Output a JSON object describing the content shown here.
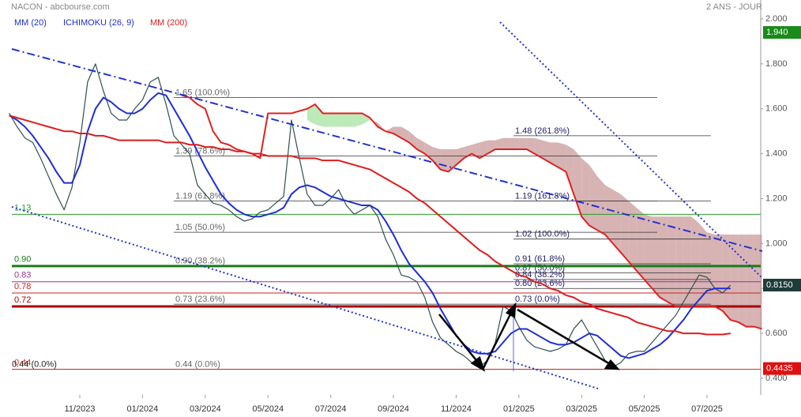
{
  "chart_data": {
    "type": "line",
    "title": "NACON - abcbourse.com",
    "subtitle": "2 ANS - JOUR",
    "categories": [
      null,
      null,
      null,
      null,
      null,
      null,
      null,
      null,
      null,
      "11/2023",
      null,
      null,
      null,
      null,
      null,
      null,
      null,
      "01/2024",
      null,
      null,
      null,
      null,
      null,
      null,
      null,
      "03/2024",
      null,
      null,
      null,
      null,
      null,
      null,
      null,
      "05/2024",
      null,
      null,
      null,
      null,
      null,
      null,
      null,
      "07/2024",
      null,
      null,
      null,
      null,
      null,
      null,
      null,
      "09/2024",
      null,
      null,
      null,
      null,
      null,
      null,
      null,
      "11/2024",
      null,
      null,
      null,
      null,
      null,
      null,
      null,
      "01/2025",
      null,
      null,
      null,
      null,
      null,
      null,
      null,
      "03/2025",
      null,
      null,
      null,
      null,
      null,
      null,
      null,
      "05/2025",
      null,
      null,
      null,
      null,
      null,
      null,
      null,
      "07/2025",
      null,
      null,
      null,
      null,
      null,
      null,
      null
    ],
    "price": {
      "color": "#2f4f4f",
      "values": [
        1.58,
        1.52,
        1.47,
        1.45,
        1.38,
        1.3,
        1.22,
        1.15,
        1.25,
        1.45,
        1.72,
        1.8,
        1.68,
        1.58,
        1.55,
        1.55,
        1.6,
        1.64,
        1.72,
        1.74,
        1.62,
        1.48,
        1.44,
        1.4,
        1.26,
        1.22,
        1.18,
        1.17,
        1.15,
        1.12,
        1.1,
        1.11,
        1.14,
        1.15,
        1.18,
        1.21,
        1.55,
        1.38,
        1.22,
        1.17,
        1.17,
        1.2,
        1.24,
        1.17,
        1.13,
        1.15,
        1.17,
        1.12,
        1.02,
        0.95,
        0.86,
        0.85,
        0.83,
        0.76,
        0.65,
        0.58,
        0.55,
        0.52,
        0.5,
        0.47,
        0.45,
        0.48,
        0.56,
        0.72,
        0.7,
        0.63,
        0.57,
        0.54,
        0.53,
        0.52,
        0.53,
        0.55,
        0.62,
        0.66,
        0.6,
        0.54,
        0.48,
        0.45,
        0.47,
        0.51,
        0.52,
        0.52,
        0.56,
        0.6,
        0.64,
        0.68,
        0.74,
        0.8,
        0.86,
        0.85,
        0.8,
        0.78,
        0.815,
        null,
        null,
        null,
        null
      ]
    },
    "series": [
      {
        "name": "MM (20)",
        "color": "#1f2fd0",
        "values": [
          1.57,
          1.55,
          1.52,
          1.48,
          1.43,
          1.38,
          1.32,
          1.27,
          1.27,
          1.35,
          1.5,
          1.6,
          1.65,
          1.63,
          1.6,
          1.58,
          1.58,
          1.6,
          1.64,
          1.67,
          1.66,
          1.6,
          1.54,
          1.48,
          1.41,
          1.34,
          1.28,
          1.22,
          1.18,
          1.15,
          1.13,
          1.12,
          1.12,
          1.13,
          1.14,
          1.16,
          1.22,
          1.25,
          1.26,
          1.25,
          1.23,
          1.21,
          1.2,
          1.19,
          1.18,
          1.17,
          1.17,
          1.15,
          1.1,
          1.04,
          0.97,
          0.91,
          0.87,
          0.83,
          0.78,
          0.71,
          0.65,
          0.59,
          0.55,
          0.52,
          0.51,
          0.51,
          0.52,
          0.56,
          0.6,
          0.62,
          0.62,
          0.6,
          0.58,
          0.56,
          0.55,
          0.55,
          0.56,
          0.58,
          0.6,
          0.59,
          0.56,
          0.53,
          0.5,
          0.49,
          0.5,
          0.51,
          0.53,
          0.55,
          0.58,
          0.62,
          0.66,
          0.71,
          0.75,
          0.79,
          0.8,
          0.8,
          0.8,
          null,
          null,
          null,
          null
        ]
      },
      {
        "name": "MM (200)",
        "color": "#dd1c1c",
        "values": [
          1.57,
          1.56,
          1.55,
          1.54,
          1.53,
          1.52,
          1.51,
          1.5,
          1.5,
          1.49,
          1.49,
          1.48,
          1.48,
          1.47,
          1.46,
          1.46,
          1.46,
          1.46,
          1.46,
          1.46,
          1.45,
          1.45,
          1.45,
          1.44,
          1.44,
          1.43,
          1.43,
          1.42,
          1.42,
          1.41,
          1.41,
          1.4,
          1.4,
          1.39,
          1.39,
          1.39,
          1.39,
          1.38,
          1.38,
          1.38,
          1.37,
          1.37,
          1.37,
          1.36,
          1.35,
          1.34,
          1.33,
          1.31,
          1.29,
          1.27,
          1.25,
          1.23,
          1.2,
          1.18,
          1.15,
          1.12,
          1.09,
          1.06,
          1.03,
          1.0,
          0.97,
          0.95,
          0.92,
          0.9,
          0.88,
          0.86,
          0.85,
          0.83,
          0.82,
          0.8,
          0.79,
          0.77,
          0.76,
          0.74,
          0.73,
          0.71,
          0.7,
          0.69,
          0.68,
          0.67,
          0.65,
          0.64,
          0.63,
          0.62,
          0.61,
          0.61,
          0.6,
          0.6,
          0.6,
          0.595,
          0.595,
          0.595,
          0.6,
          null,
          null,
          null,
          null
        ]
      }
    ],
    "ichimoku": {
      "name": "ICHIMOKU (26, 9)",
      "legend_color": "#1f2fd0",
      "line_color": "#e02020",
      "cloud_color": "#c99a9a",
      "cloud_color_2": "#a6e3a0",
      "span_b": [
        null,
        null,
        null,
        null,
        null,
        null,
        null,
        null,
        null,
        null,
        null,
        null,
        null,
        null,
        null,
        null,
        null,
        null,
        null,
        null,
        null,
        null,
        1.66,
        1.65,
        1.62,
        1.6,
        1.5,
        1.45,
        1.44,
        1.42,
        1.41,
        1.4,
        1.38,
        1.58,
        1.58,
        1.58,
        1.58,
        1.59,
        1.6,
        1.62,
        1.58,
        1.58,
        1.58,
        1.58,
        1.58,
        1.58,
        1.56,
        1.52,
        1.5,
        1.49,
        1.47,
        1.45,
        1.42,
        1.4,
        1.37,
        1.33,
        1.32,
        1.35,
        1.38,
        1.4,
        1.38,
        1.4,
        1.42,
        1.42,
        1.42,
        1.42,
        1.42,
        1.4,
        1.38,
        1.36,
        1.34,
        1.32,
        1.22,
        1.12,
        1.08,
        1.06,
        1.04,
        1.0,
        0.96,
        0.92,
        0.88,
        0.84,
        0.8,
        0.76,
        0.74,
        0.72,
        0.72,
        0.72,
        0.72,
        0.72,
        0.72,
        0.7,
        0.66,
        0.65,
        0.63,
        0.63,
        0.62
      ],
      "span_a": [
        null,
        null,
        null,
        null,
        null,
        null,
        null,
        null,
        null,
        null,
        null,
        null,
        null,
        null,
        null,
        null,
        null,
        null,
        null,
        null,
        null,
        null,
        null,
        null,
        null,
        null,
        null,
        null,
        null,
        null,
        null,
        null,
        null,
        null,
        null,
        null,
        null,
        null,
        1.55,
        1.53,
        1.52,
        1.52,
        1.52,
        1.52,
        1.52,
        1.53,
        1.55,
        1.54,
        1.5,
        1.52,
        1.52,
        1.5,
        1.47,
        1.45,
        1.43,
        1.42,
        1.42,
        1.42,
        1.43,
        1.44,
        1.45,
        1.46,
        1.46,
        1.47,
        1.47,
        1.47,
        1.47,
        1.47,
        1.46,
        1.45,
        1.45,
        1.44,
        1.42,
        1.38,
        1.35,
        1.3,
        1.26,
        1.24,
        1.22,
        1.19,
        1.16,
        1.13,
        1.12,
        1.12,
        1.12,
        1.12,
        1.12,
        1.12,
        1.09,
        1.05,
        1.04,
        1.04,
        1.04,
        1.04,
        1.04,
        1.04,
        1.04
      ]
    },
    "fib_left": [
      {
        "value": 1.65,
        "label": "1.65  (100.0%)"
      },
      {
        "value": 1.39,
        "label": "1.39  (78.6%)"
      },
      {
        "value": 1.19,
        "label": "1.19  (61.8%)"
      },
      {
        "value": 1.05,
        "label": "1.05  (50.0%)"
      },
      {
        "value": 0.9,
        "label": "0.90  (38.2%)"
      },
      {
        "value": 0.73,
        "label": "0.73  (23.6%)"
      },
      {
        "value": 0.44,
        "label": "0.44  (0.0%)"
      }
    ],
    "fib_outer": {
      "value": 0.44,
      "label": "0.44  (0.0%)"
    },
    "fib_right": [
      {
        "value": 1.48,
        "label": "1.48  (261.8%)"
      },
      {
        "value": 1.19,
        "label": "1.19  (161.8%)"
      },
      {
        "value": 1.02,
        "label": "1.02  (100.0%)"
      },
      {
        "value": 0.91,
        "label": "0.91  (61.8%)"
      },
      {
        "value": 0.87,
        "label": "0.87  (50.0%)"
      },
      {
        "value": 0.84,
        "label": "0.84  (38.2%)"
      },
      {
        "value": 0.8,
        "label": "0.80  (23.6%)"
      },
      {
        "value": 0.73,
        "label": "0.73  (0.0%)"
      }
    ],
    "levels": [
      {
        "value": 1.13,
        "label": "1.13",
        "color": "#2a9d2a",
        "style": "thin"
      },
      {
        "value": 0.9,
        "label": "0.90",
        "color": "#1a7a1a",
        "style": "thick"
      },
      {
        "value": 0.83,
        "label": "0.83",
        "color": "#993399",
        "style": "thin"
      },
      {
        "value": 0.78,
        "label": "0.78",
        "color": "#cc2222",
        "style": "thin"
      },
      {
        "value": 0.72,
        "label": "0.72",
        "color": "#aa0000",
        "style": "thick"
      },
      {
        "value": 0.44,
        "label": "0.44",
        "color": "#dd2222",
        "style": "thin"
      }
    ],
    "badges": [
      {
        "value": 1.94,
        "label": "1.940",
        "color": "#1a8a1a"
      },
      {
        "value": 0.815,
        "label": "0.8150",
        "color": "#1f3b3b"
      },
      {
        "value": 0.4435,
        "label": "0.4435",
        "color": "#dd1111"
      }
    ],
    "ylim": [
      0.4,
      2.0
    ],
    "yticks": [
      {
        "value": 2.0,
        "label": "2.000"
      },
      {
        "value": 1.8,
        "label": "1.800"
      },
      {
        "value": 1.6,
        "label": "1.600"
      },
      {
        "value": 1.4,
        "label": "1.400"
      },
      {
        "value": 1.2,
        "label": "1.200"
      },
      {
        "value": 1.0,
        "label": "1.000"
      },
      {
        "value": 0.8,
        "label": "0.800"
      },
      {
        "value": 0.6,
        "label": "0.600"
      },
      {
        "value": 0.4,
        "label": "0.400"
      }
    ],
    "grid": false
  }
}
